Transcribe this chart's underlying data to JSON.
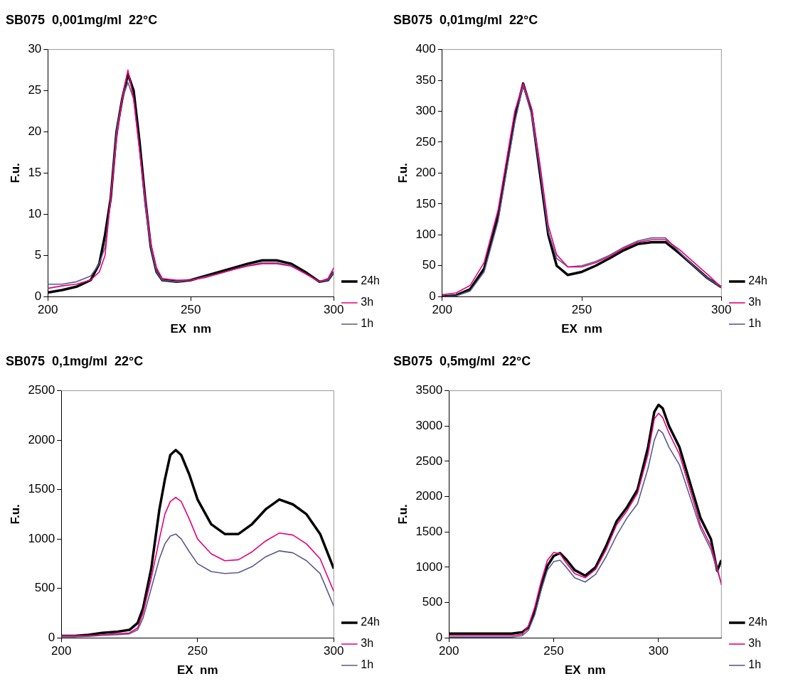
{
  "chart_data": [
    {
      "type": "line",
      "title": "SB075  0,001mg/ml  22°C",
      "xlabel": "EX  nm",
      "ylabel": "F.u.",
      "legend": "right",
      "marker": "none",
      "grid": false,
      "x": [
        200,
        205,
        210,
        215,
        218,
        220,
        222,
        224,
        226,
        228,
        230,
        232,
        234,
        236,
        238,
        240,
        245,
        250,
        255,
        260,
        265,
        270,
        275,
        280,
        285,
        290,
        295,
        298,
        300
      ],
      "xlim": [
        200,
        300
      ],
      "xticks": [
        200,
        250,
        300
      ],
      "ylim": [
        0,
        30
      ],
      "yticks": [
        0,
        5,
        10,
        15,
        20,
        25,
        30
      ],
      "series": [
        {
          "name": "24h",
          "color": "#000000",
          "values": [
            0.5,
            0.8,
            1.2,
            2,
            4,
            7.5,
            12,
            20,
            24,
            27,
            25,
            19,
            12,
            6,
            3,
            2,
            1.8,
            2,
            2.5,
            3,
            3.5,
            4,
            4.4,
            4.4,
            4,
            3,
            1.8,
            2,
            3
          ]
        },
        {
          "name": "3h",
          "color": "#e6007e",
          "values": [
            1,
            1.3,
            1.5,
            2,
            3,
            5,
            12,
            19,
            24,
            27.5,
            24,
            18,
            12,
            6.5,
            3.5,
            2.2,
            2,
            2,
            2.3,
            2.8,
            3.3,
            3.7,
            4,
            4,
            3.7,
            2.8,
            1.8,
            2.2,
            3.5
          ]
        },
        {
          "name": "1h",
          "color": "#5a5a8c",
          "values": [
            1.5,
            1.5,
            1.8,
            2.5,
            4,
            6,
            12,
            20,
            24,
            26,
            24,
            18,
            11,
            6,
            3,
            2,
            1.8,
            2,
            2.4,
            2.8,
            3.3,
            3.8,
            4.1,
            4.1,
            3.8,
            2.8,
            1.8,
            2,
            3
          ]
        }
      ]
    },
    {
      "type": "line",
      "title": "SB075  0,01mg/ml  22°C",
      "xlabel": "EX  nm",
      "ylabel": "F.u.",
      "legend": "right",
      "marker": "none",
      "grid": false,
      "x": [
        200,
        205,
        210,
        215,
        220,
        223,
        226,
        229,
        232,
        235,
        238,
        241,
        245,
        250,
        255,
        260,
        265,
        270,
        275,
        280,
        285,
        290,
        295,
        300
      ],
      "xlim": [
        200,
        300
      ],
      "xticks": [
        200,
        250,
        300
      ],
      "ylim": [
        0,
        400
      ],
      "yticks": [
        0,
        50,
        100,
        150,
        200,
        250,
        300,
        350,
        400
      ],
      "series": [
        {
          "name": "24h",
          "color": "#000000",
          "values": [
            0,
            2,
            12,
            45,
            130,
            210,
            290,
            345,
            300,
            200,
            100,
            50,
            35,
            40,
            50,
            62,
            75,
            85,
            88,
            88,
            70,
            50,
            30,
            15
          ]
        },
        {
          "name": "3h",
          "color": "#e6007e",
          "values": [
            3,
            6,
            18,
            55,
            140,
            220,
            300,
            345,
            305,
            215,
            115,
            68,
            48,
            48,
            55,
            65,
            78,
            88,
            92,
            92,
            76,
            56,
            36,
            15
          ]
        },
        {
          "name": "1h",
          "color": "#5a5a8c",
          "values": [
            0,
            1,
            9,
            40,
            122,
            202,
            282,
            343,
            295,
            205,
            105,
            62,
            48,
            50,
            57,
            67,
            80,
            90,
            95,
            95,
            72,
            50,
            30,
            15
          ]
        }
      ]
    },
    {
      "type": "line",
      "title": "SB075  0,1mg/ml  22°C",
      "xlabel": "EX  nm",
      "ylabel": "F.u.",
      "legend": "right",
      "marker": "none",
      "grid": false,
      "x": [
        200,
        205,
        210,
        215,
        220,
        225,
        228,
        230,
        233,
        236,
        238,
        240,
        242,
        244,
        247,
        250,
        255,
        260,
        265,
        270,
        275,
        280,
        285,
        290,
        295,
        300
      ],
      "xlim": [
        200,
        300
      ],
      "xticks": [
        200,
        250,
        300
      ],
      "ylim": [
        0,
        2500
      ],
      "yticks": [
        0,
        500,
        1000,
        1500,
        2000,
        2500
      ],
      "series": [
        {
          "name": "24h",
          "color": "#000000",
          "values": [
            20,
            20,
            30,
            50,
            60,
            80,
            150,
            300,
            700,
            1300,
            1600,
            1850,
            1900,
            1850,
            1650,
            1400,
            1150,
            1050,
            1050,
            1150,
            1300,
            1400,
            1350,
            1250,
            1050,
            700
          ]
        },
        {
          "name": "3h",
          "color": "#e6007e",
          "values": [
            20,
            20,
            20,
            30,
            40,
            50,
            100,
            250,
            600,
            1000,
            1250,
            1380,
            1420,
            1380,
            1200,
            1000,
            850,
            780,
            790,
            870,
            980,
            1060,
            1040,
            950,
            800,
            470
          ]
        },
        {
          "name": "1h",
          "color": "#5a5a8c",
          "values": [
            10,
            10,
            15,
            25,
            30,
            40,
            80,
            200,
            500,
            800,
            950,
            1030,
            1050,
            1000,
            870,
            750,
            670,
            650,
            660,
            720,
            820,
            880,
            860,
            780,
            650,
            320
          ]
        }
      ]
    },
    {
      "type": "line",
      "title": "SB075  0,5mg/ml  22°C",
      "xlabel": "EX  nm",
      "ylabel": "F.u.",
      "legend": "right",
      "marker": "none",
      "grid": false,
      "x": [
        200,
        210,
        220,
        230,
        235,
        238,
        241,
        244,
        247,
        250,
        253,
        256,
        260,
        265,
        270,
        275,
        280,
        285,
        290,
        295,
        298,
        300,
        302,
        305,
        310,
        315,
        320,
        325,
        328,
        330
      ],
      "xlim": [
        200,
        330
      ],
      "xticks": [
        200,
        250,
        300
      ],
      "ylim": [
        0,
        3500
      ],
      "yticks": [
        0,
        500,
        1000,
        1500,
        2000,
        2500,
        3000,
        3500
      ],
      "series": [
        {
          "name": "24h",
          "color": "#000000",
          "values": [
            60,
            60,
            60,
            60,
            80,
            150,
            380,
            720,
            1020,
            1160,
            1200,
            1110,
            960,
            880,
            1000,
            1300,
            1650,
            1850,
            2100,
            2700,
            3200,
            3300,
            3250,
            3000,
            2700,
            2200,
            1700,
            1400,
            950,
            1100
          ]
        },
        {
          "name": "3h",
          "color": "#e6007e",
          "values": [
            30,
            30,
            30,
            30,
            50,
            170,
            440,
            800,
            1100,
            1210,
            1190,
            1060,
            910,
            850,
            970,
            1250,
            1600,
            1800,
            2050,
            2600,
            3100,
            3180,
            3120,
            2900,
            2600,
            2100,
            1600,
            1300,
            1000,
            750
          ]
        },
        {
          "name": "1h",
          "color": "#5a5a8c",
          "values": [
            10,
            10,
            10,
            10,
            30,
            110,
            330,
            680,
            960,
            1080,
            1100,
            1000,
            850,
            790,
            900,
            1150,
            1450,
            1700,
            1900,
            2400,
            2800,
            2950,
            2900,
            2700,
            2450,
            2000,
            1550,
            1250,
            950,
            780
          ]
        }
      ]
    }
  ]
}
